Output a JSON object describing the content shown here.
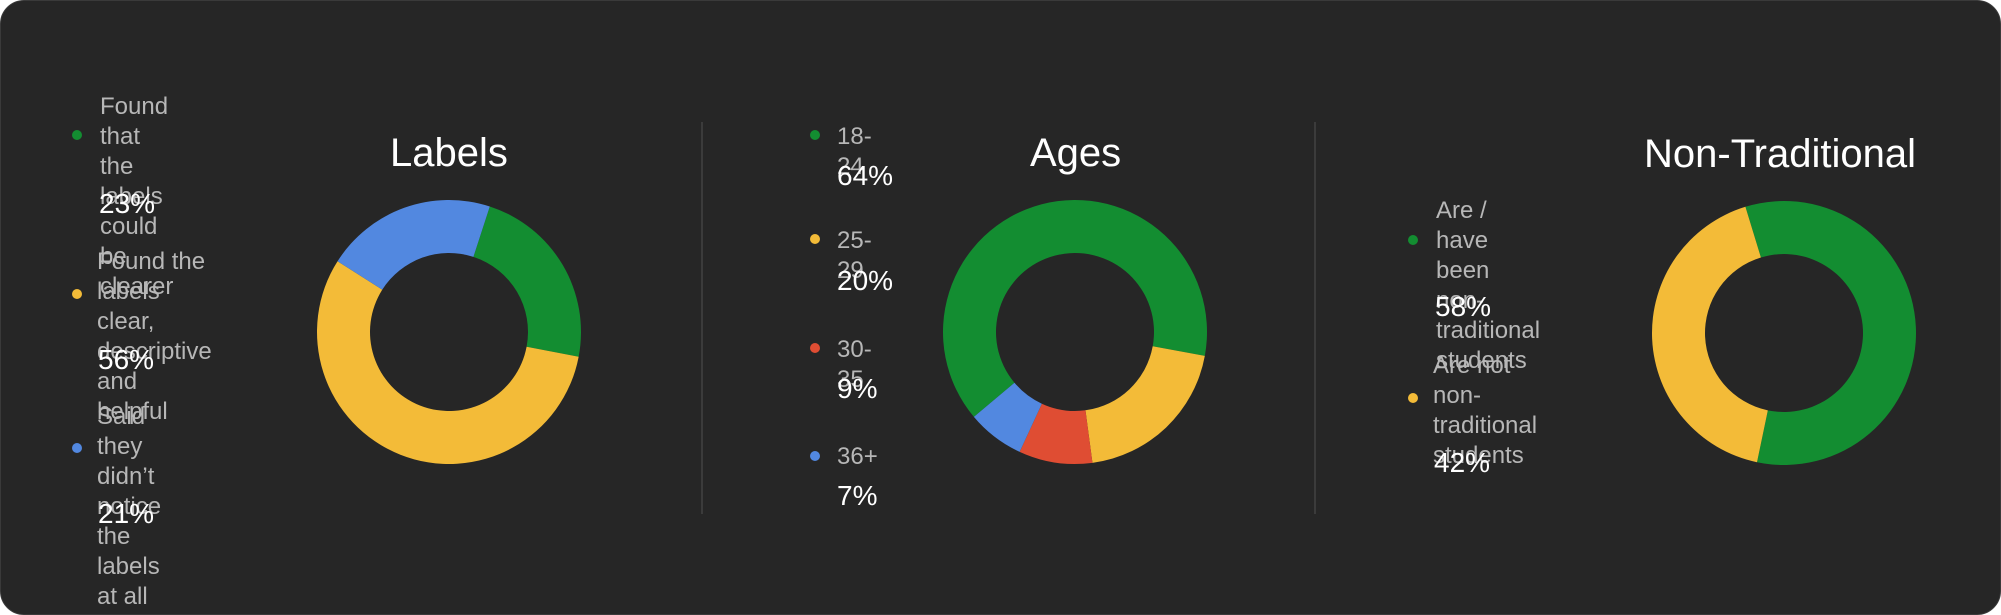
{
  "colors": {
    "green": "#138d31",
    "yellow": "#f3bb38",
    "blue": "#5288e0",
    "red": "#df4d33",
    "background": "#262626"
  },
  "chart_data": [
    {
      "type": "pie",
      "title": "Labels",
      "slices": [
        {
          "label": "Found that the\nlabels could be\nclearer",
          "value": 23,
          "display": "23%",
          "color": "#138d31"
        },
        {
          "label": "Found the labels\nclear, descriptive\nand helpful",
          "value": 56,
          "display": "56%",
          "color": "#f3bb38"
        },
        {
          "label": "Said they didn’t\nnotice the labels\nat all",
          "value": 21,
          "display": "21%",
          "color": "#5288e0"
        }
      ]
    },
    {
      "type": "pie",
      "title": "Ages",
      "slices": [
        {
          "label": "18-24",
          "value": 64,
          "display": "64%",
          "color": "#138d31"
        },
        {
          "label": "25-29",
          "value": 20,
          "display": "20%",
          "color": "#f3bb38"
        },
        {
          "label": "30-35",
          "value": 9,
          "display": "9%",
          "color": "#df4d33"
        },
        {
          "label": "36+",
          "value": 7,
          "display": "7%",
          "color": "#5288e0"
        }
      ]
    },
    {
      "type": "pie",
      "title": "Non-Traditional",
      "slices": [
        {
          "label": "Are / have been\nnon-traditional\nstudents",
          "value": 58,
          "display": "58%",
          "color": "#138d31"
        },
        {
          "label": "Are not non-\ntraditional\nstudents",
          "value": 42,
          "display": "42%",
          "color": "#f3bb38"
        }
      ]
    }
  ]
}
